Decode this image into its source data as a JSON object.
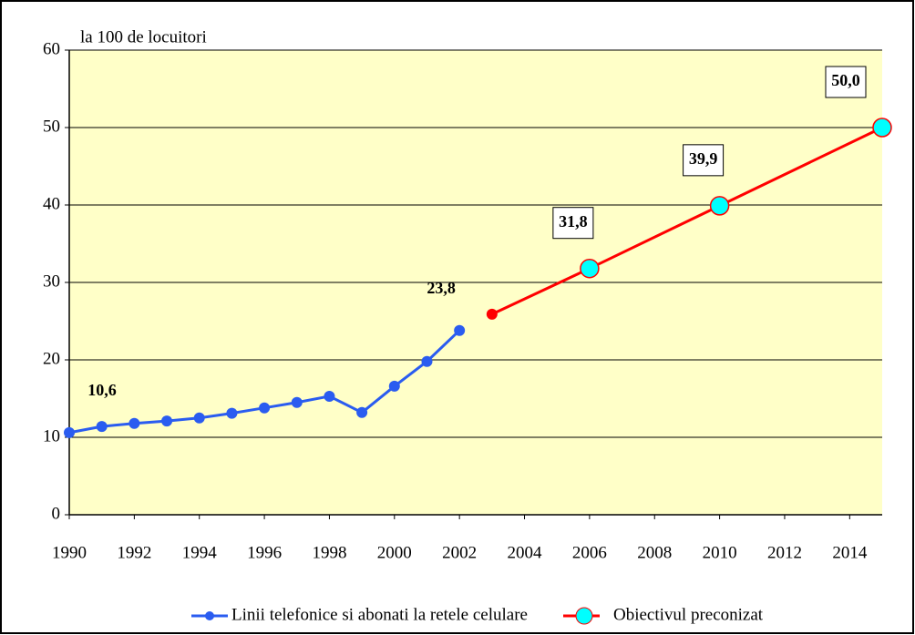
{
  "chart_data": {
    "type": "line",
    "y_label": "la 100 de locuitori",
    "xlim": [
      1990,
      2015
    ],
    "xticks": [
      1990,
      1992,
      1994,
      1996,
      1998,
      2000,
      2002,
      2004,
      2006,
      2008,
      2010,
      2012,
      2014
    ],
    "ylim": [
      0,
      60
    ],
    "yticks": [
      0,
      10,
      20,
      30,
      40,
      50,
      60
    ],
    "grid": true,
    "background": "#ffffc8",
    "series": [
      {
        "name": "Linii telefonice si abonati la retele celulare",
        "color": "#2a5cf0",
        "marker_color": "#2a5cf0",
        "x": [
          1990,
          1991,
          1992,
          1993,
          1994,
          1995,
          1996,
          1997,
          1998,
          1999,
          2000,
          2001,
          2002
        ],
        "values": [
          10.6,
          11.4,
          11.8,
          12.1,
          12.5,
          13.1,
          13.8,
          14.5,
          15.3,
          13.2,
          16.6,
          19.8,
          23.8
        ],
        "value_labels": [
          "10,6",
          null,
          null,
          null,
          null,
          null,
          null,
          null,
          null,
          null,
          null,
          null,
          "23,8"
        ]
      },
      {
        "name": "Obiectivul preconizat",
        "color": "#ff0000",
        "marker_color": "#00ffff",
        "x": [
          2003,
          2006,
          2010,
          2015
        ],
        "values": [
          25.9,
          31.8,
          39.9,
          50.0
        ],
        "value_labels": [
          null,
          "31,8",
          "39,9",
          "50,0"
        ]
      }
    ]
  }
}
